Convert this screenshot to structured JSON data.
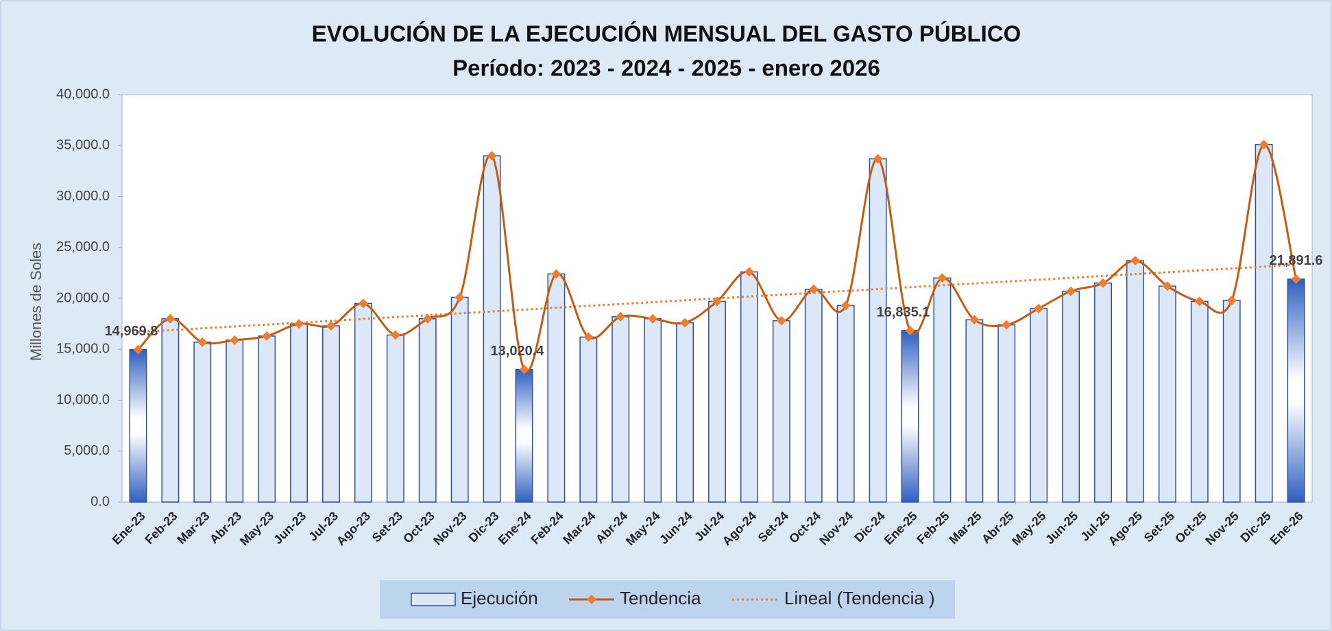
{
  "chart_data": {
    "type": "bar_line",
    "title": "EVOLUCIÓN DE LA EJECUCIÓN MENSUAL DEL GASTO PÚBLICO",
    "subtitle": "Período: 2023 - 2024 - 2025 - enero 2026",
    "y_label": "Millones de Soles",
    "categories": [
      "Ene-23",
      "Feb-23",
      "Mar-23",
      "Abr-23",
      "May-23",
      "Jun-23",
      "Jul-23",
      "Ago-23",
      "Set-23",
      "Oct-23",
      "Nov-23",
      "Dic-23",
      "Ene-24",
      "Feb-24",
      "Mar-24",
      "Abr-24",
      "May-24",
      "Jun-24",
      "Jul-24",
      "Ago-24",
      "Set-24",
      "Oct-24",
      "Nov-24",
      "Dic-24",
      "Ene-25",
      "Feb-25",
      "Mar-25",
      "Abr-25",
      "May-25",
      "Jun-25",
      "Jul-25",
      "Ago-25",
      "Set-25",
      "Oct-25",
      "Nov-25",
      "Dic-25",
      "Ene-26"
    ],
    "series": [
      {
        "name": "Ejecución",
        "type": "bar",
        "color": "#dce8f7",
        "edge_color": "#2f4f9f",
        "values": [
          14969.8,
          18000,
          15700,
          15900,
          16300,
          17500,
          17300,
          19500,
          16400,
          18000,
          20100,
          34000,
          13020.4,
          22400,
          16200,
          18200,
          18000,
          17600,
          19700,
          22600,
          17800,
          20900,
          19300,
          33700,
          16835.1,
          22000,
          17900,
          17400,
          19000,
          20700,
          21500,
          23700,
          21200,
          19700,
          19800,
          35100,
          21891.6
        ],
        "value_labels": [
          "14,969.8",
          null,
          null,
          null,
          null,
          null,
          null,
          null,
          null,
          null,
          null,
          null,
          "13,020.4",
          null,
          null,
          null,
          null,
          null,
          null,
          null,
          null,
          null,
          null,
          null,
          "16,835.1",
          null,
          null,
          null,
          null,
          null,
          null,
          null,
          null,
          null,
          null,
          null,
          "21,891.6"
        ]
      },
      {
        "name": "Tendencia",
        "type": "line",
        "color": "#c55a11",
        "marker_color": "#ed7d31",
        "values": [
          14969.8,
          18000,
          15700,
          15900,
          16300,
          17500,
          17300,
          19500,
          16400,
          18000,
          20100,
          34000,
          13020.4,
          22400,
          16200,
          18200,
          18000,
          17600,
          19700,
          22600,
          17800,
          20900,
          19300,
          33700,
          16835.1,
          22000,
          17900,
          17400,
          19000,
          20700,
          21500,
          23700,
          21200,
          19700,
          19800,
          35100,
          21891.6
        ]
      }
    ],
    "trendline": {
      "name": "Lineal (Tendencia )",
      "color": "#ed7d31"
    },
    "ylim": [
      0,
      40000
    ],
    "yticks": [
      {
        "value": 0,
        "label": "0.0"
      },
      {
        "value": 5000,
        "label": "5,000.0"
      },
      {
        "value": 10000,
        "label": "10,000.0"
      },
      {
        "value": 15000,
        "label": "15,000.0"
      },
      {
        "value": 20000,
        "label": "20,000.0"
      },
      {
        "value": 25000,
        "label": "25,000.0"
      },
      {
        "value": 30000,
        "label": "30,000.0"
      },
      {
        "value": 35000,
        "label": "35,000.0"
      },
      {
        "value": 40000,
        "label": "40,000.0"
      }
    ]
  }
}
